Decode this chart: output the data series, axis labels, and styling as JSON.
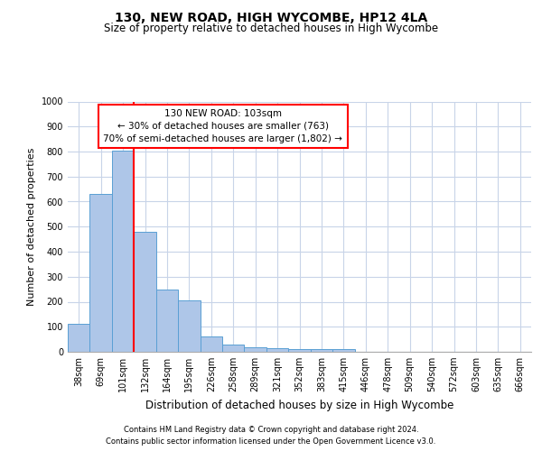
{
  "title_line1": "130, NEW ROAD, HIGH WYCOMBE, HP12 4LA",
  "title_line2": "Size of property relative to detached houses in High Wycombe",
  "xlabel": "Distribution of detached houses by size in High Wycombe",
  "ylabel": "Number of detached properties",
  "categories": [
    "38sqm",
    "69sqm",
    "101sqm",
    "132sqm",
    "164sqm",
    "195sqm",
    "226sqm",
    "258sqm",
    "289sqm",
    "321sqm",
    "352sqm",
    "383sqm",
    "415sqm",
    "446sqm",
    "478sqm",
    "509sqm",
    "540sqm",
    "572sqm",
    "603sqm",
    "635sqm",
    "666sqm"
  ],
  "values": [
    110,
    630,
    805,
    480,
    250,
    207,
    62,
    28,
    18,
    13,
    10,
    10,
    12,
    0,
    0,
    0,
    0,
    0,
    0,
    0,
    0
  ],
  "bar_color": "#aec6e8",
  "bar_edge_color": "#5a9fd4",
  "red_line_index": 2,
  "annotation_text": "130 NEW ROAD: 103sqm\n← 30% of detached houses are smaller (763)\n70% of semi-detached houses are larger (1,802) →",
  "ylim": [
    0,
    1000
  ],
  "yticks": [
    0,
    100,
    200,
    300,
    400,
    500,
    600,
    700,
    800,
    900,
    1000
  ],
  "footer_line1": "Contains HM Land Registry data © Crown copyright and database right 2024.",
  "footer_line2": "Contains public sector information licensed under the Open Government Licence v3.0.",
  "grid_color": "#c8d4e8",
  "title1_fontsize": 10,
  "title2_fontsize": 8.5,
  "xlabel_fontsize": 8.5,
  "ylabel_fontsize": 8,
  "tick_fontsize": 7,
  "annot_fontsize": 7.5,
  "footer_fontsize": 6
}
